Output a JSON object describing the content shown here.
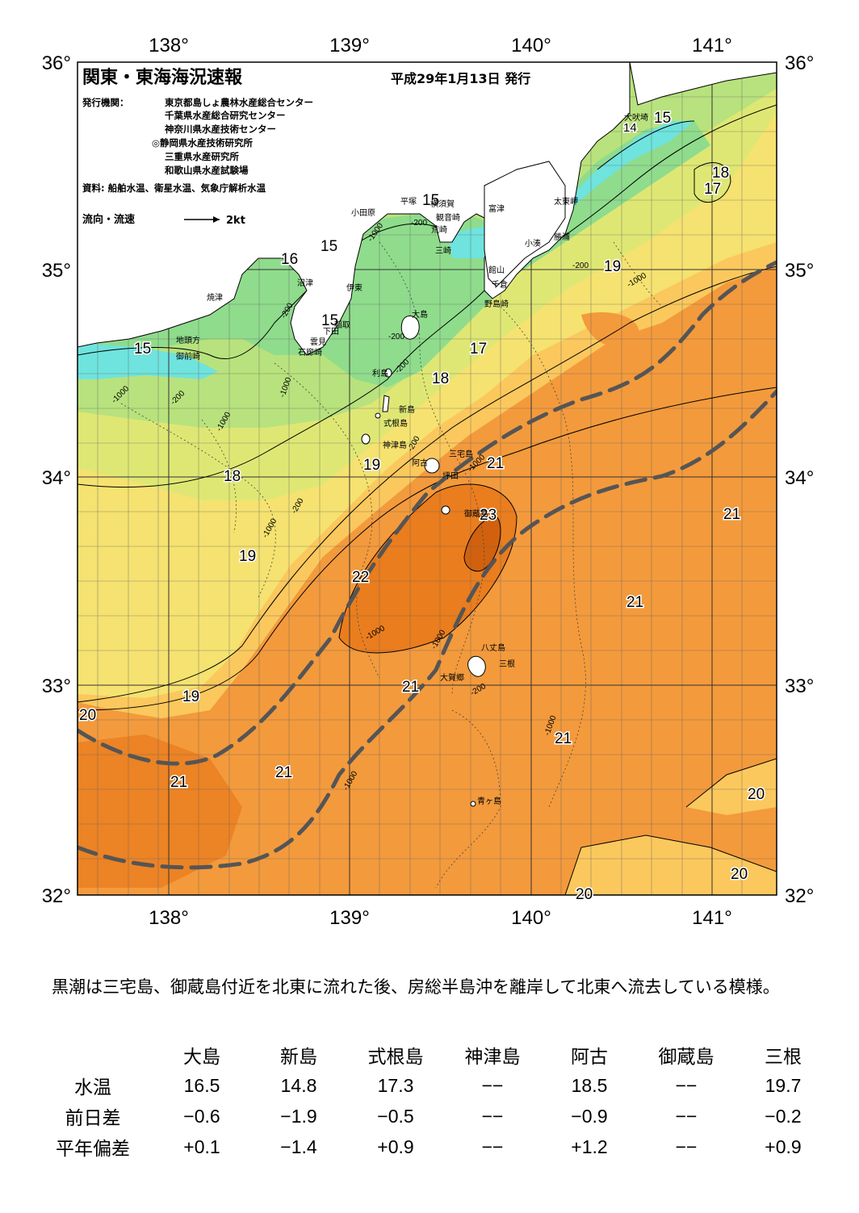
{
  "header": {
    "title": "関東・東海海況速報",
    "date": "平成29年1月13日 発行",
    "agency_label": "発行機関：",
    "agencies": [
      "東京都島しょ農林水産総合センター",
      "千葉県水産総合研究センター",
      "神奈川県水産技術センター",
      "◎静岡県水産技術研究所",
      "三重県水産研究所",
      "和歌山県水産試験場"
    ],
    "source": "資料: 船舶水温、衛星水温、気象庁解析水温",
    "legend_label": "流向・流速",
    "legend_speed": "2kt"
  },
  "axes": {
    "lon_top": [
      "138°",
      "139°",
      "140°",
      "141°"
    ],
    "lon_bottom": [
      "138°",
      "139°",
      "140°",
      "141°"
    ],
    "lat_left": [
      "36°",
      "35°",
      "34°",
      "33°",
      "32°"
    ],
    "lat_right": [
      "36°",
      "35°",
      "34°",
      "33°",
      "32°"
    ]
  },
  "isotherm_labels": [
    "15",
    "14",
    "15",
    "16",
    "15",
    "15",
    "15",
    "15",
    "16",
    "17",
    "18",
    "17",
    "18",
    "19",
    "19",
    "18",
    "19",
    "21",
    "23",
    "22",
    "21",
    "21",
    "19",
    "20",
    "21",
    "21",
    "21",
    "20",
    "20",
    "20",
    "21"
  ],
  "depth_labels": [
    "-200",
    "-1000",
    "-200",
    "-1000",
    "-1000",
    "-200",
    "-200",
    "-1000",
    "-200",
    "-200",
    "-1000",
    "-1000",
    "-200",
    "-1000",
    "-200",
    "-1000",
    "-1000",
    "-1000",
    "-200",
    "-1000"
  ],
  "places": [
    "小田原",
    "平塚",
    "横須賀",
    "観音崎",
    "荒崎",
    "三崎",
    "富津",
    "館山",
    "千倉",
    "野島崎",
    "太東岬",
    "勝浦",
    "小湊",
    "犬吠埼",
    "沼津",
    "焼津",
    "伊東",
    "稲取",
    "下田",
    "雲見",
    "石廊崎",
    "地頭方",
    "御前崎",
    "大島",
    "利島",
    "新島",
    "式根島",
    "神津島",
    "三宅島",
    "阿古",
    "坪田",
    "御蔵島",
    "八丈島",
    "三根",
    "大賀郷",
    "青ヶ島"
  ],
  "summary": "黒潮は三宅島、御蔵島付近を北東に流れた後、房総半島沖を離岸して北東へ流去している模様。",
  "table": {
    "columns": [
      "大島",
      "新島",
      "式根島",
      "神津島",
      "阿古",
      "御蔵島",
      "三根"
    ],
    "rows": [
      {
        "label": "水温",
        "values": [
          "16.5",
          "14.8",
          "17.3",
          "−−",
          "18.5",
          "−−",
          "19.7"
        ]
      },
      {
        "label": "前日差",
        "values": [
          "−0.6",
          "−1.9",
          "−0.5",
          "−−",
          "−0.9",
          "−−",
          "−0.2"
        ]
      },
      {
        "label": "平年偏差",
        "values": [
          "+0.1",
          "−1.4",
          "+0.9",
          "−−",
          "+1.2",
          "−−",
          "+0.9"
        ]
      }
    ]
  },
  "colors": {
    "sst_15": "#6fe3dd",
    "sst_16": "#8fdc8c",
    "sst_17": "#b8e27d",
    "sst_18": "#dfe774",
    "sst_19": "#f5e270",
    "sst_20": "#fbc85d",
    "sst_21": "#f39a3c",
    "sst_22": "#ea7d1e",
    "sst_23": "#d1610e",
    "land": "#ffffff",
    "kuroshio_axis": "#555555"
  }
}
